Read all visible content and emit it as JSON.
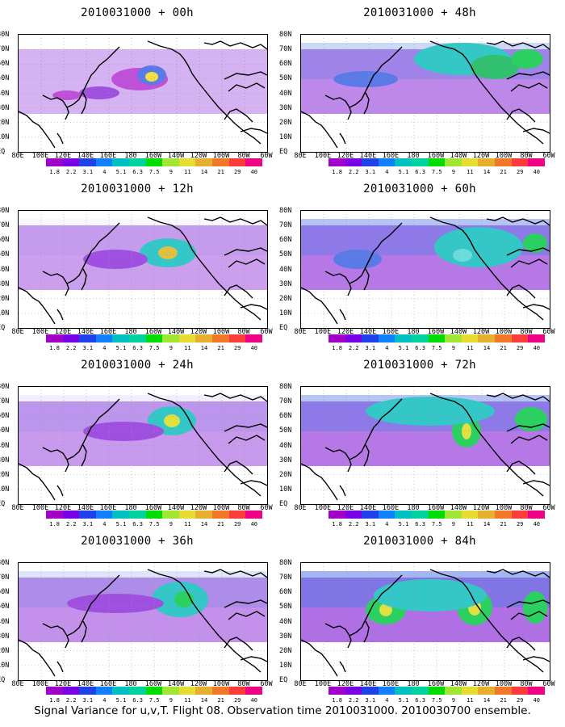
{
  "panels": [
    {
      "title": "2010031000 + 00h",
      "intensity": 0.25,
      "blobs": [
        [
          150,
          55,
          35,
          14,
          "#c050d8"
        ],
        [
          165,
          50,
          18,
          12,
          "#5a7ae8"
        ],
        [
          165,
          52,
          8,
          6,
          "#f0e040"
        ],
        [
          100,
          72,
          25,
          8,
          "#a050e0"
        ],
        [
          60,
          75,
          18,
          6,
          "#c050d8"
        ]
      ]
    },
    {
      "title": "2010031000 + 48h",
      "intensity": 0.7,
      "blobs": [
        [
          200,
          30,
          60,
          20,
          "#34c7c7"
        ],
        [
          240,
          40,
          30,
          15,
          "#30c070"
        ],
        [
          80,
          55,
          40,
          10,
          "#5a7ae8"
        ],
        [
          280,
          30,
          20,
          12,
          "#2ad060"
        ]
      ]
    },
    {
      "title": "2010031000 + 12h",
      "intensity": 0.45,
      "blobs": [
        [
          185,
          52,
          35,
          18,
          "#34c7c7"
        ],
        [
          185,
          52,
          12,
          8,
          "#e0c040"
        ],
        [
          120,
          60,
          40,
          12,
          "#a050e0"
        ]
      ]
    },
    {
      "title": "2010031000 + 60h",
      "intensity": 0.85,
      "blobs": [
        [
          220,
          45,
          55,
          25,
          "#34c7c7"
        ],
        [
          290,
          40,
          15,
          12,
          "#2ad060"
        ],
        [
          70,
          60,
          30,
          12,
          "#5a7ae8"
        ],
        [
          200,
          55,
          12,
          8,
          "#6adcdc"
        ]
      ]
    },
    {
      "title": "2010031000 + 24h",
      "intensity": 0.5,
      "blobs": [
        [
          190,
          42,
          30,
          18,
          "#34c7c7"
        ],
        [
          190,
          42,
          10,
          8,
          "#e0e040"
        ],
        [
          130,
          55,
          50,
          12,
          "#a050e0"
        ]
      ]
    },
    {
      "title": "2010031000 + 72h",
      "intensity": 0.85,
      "blobs": [
        [
          205,
          55,
          18,
          20,
          "#2ad060"
        ],
        [
          205,
          55,
          6,
          10,
          "#e0e040"
        ],
        [
          160,
          30,
          80,
          18,
          "#34c7c7"
        ],
        [
          285,
          40,
          20,
          15,
          "#2ad060"
        ]
      ]
    },
    {
      "title": "2010031000 + 36h",
      "intensity": 0.6,
      "blobs": [
        [
          200,
          45,
          35,
          22,
          "#34c7c7"
        ],
        [
          205,
          45,
          12,
          10,
          "#2ad060"
        ],
        [
          120,
          50,
          60,
          12,
          "#a050e0"
        ]
      ]
    },
    {
      "title": "2010031000 + 84h",
      "intensity": 0.95,
      "blobs": [
        [
          105,
          58,
          25,
          18,
          "#2ad060"
        ],
        [
          105,
          58,
          8,
          8,
          "#e0e040"
        ],
        [
          215,
          55,
          22,
          22,
          "#2ad060"
        ],
        [
          215,
          55,
          8,
          10,
          "#e0e040"
        ],
        [
          290,
          55,
          15,
          20,
          "#2ad060"
        ],
        [
          160,
          40,
          70,
          20,
          "#34c7c7"
        ]
      ]
    }
  ],
  "lat_labels": [
    "80N",
    "70N",
    "60N",
    "50N",
    "40N",
    "30N",
    "20N",
    "10N",
    "EQ"
  ],
  "lon_labels": [
    "80E",
    "100E",
    "120E",
    "140E",
    "160E",
    "180",
    "160W",
    "140W",
    "120W",
    "100W",
    "80W",
    "60W"
  ],
  "colorbar": {
    "colors": [
      "#a000c8",
      "#7a00e6",
      "#2040e8",
      "#1080ff",
      "#00c0c0",
      "#00d2a0",
      "#00dc00",
      "#a0e632",
      "#e6dc32",
      "#e6af2d",
      "#f07828",
      "#fa3c3c",
      "#f00082"
    ],
    "labels": [
      "1.8",
      "2.2",
      "3.1",
      "4",
      "5.1",
      "6.3",
      "7.5",
      "9",
      "11",
      "14",
      "21",
      "29",
      "40"
    ]
  },
  "caption": "Signal Variance for u,v,T. Flight 08. Observation time 2010031000. 2010030700 ensemble."
}
